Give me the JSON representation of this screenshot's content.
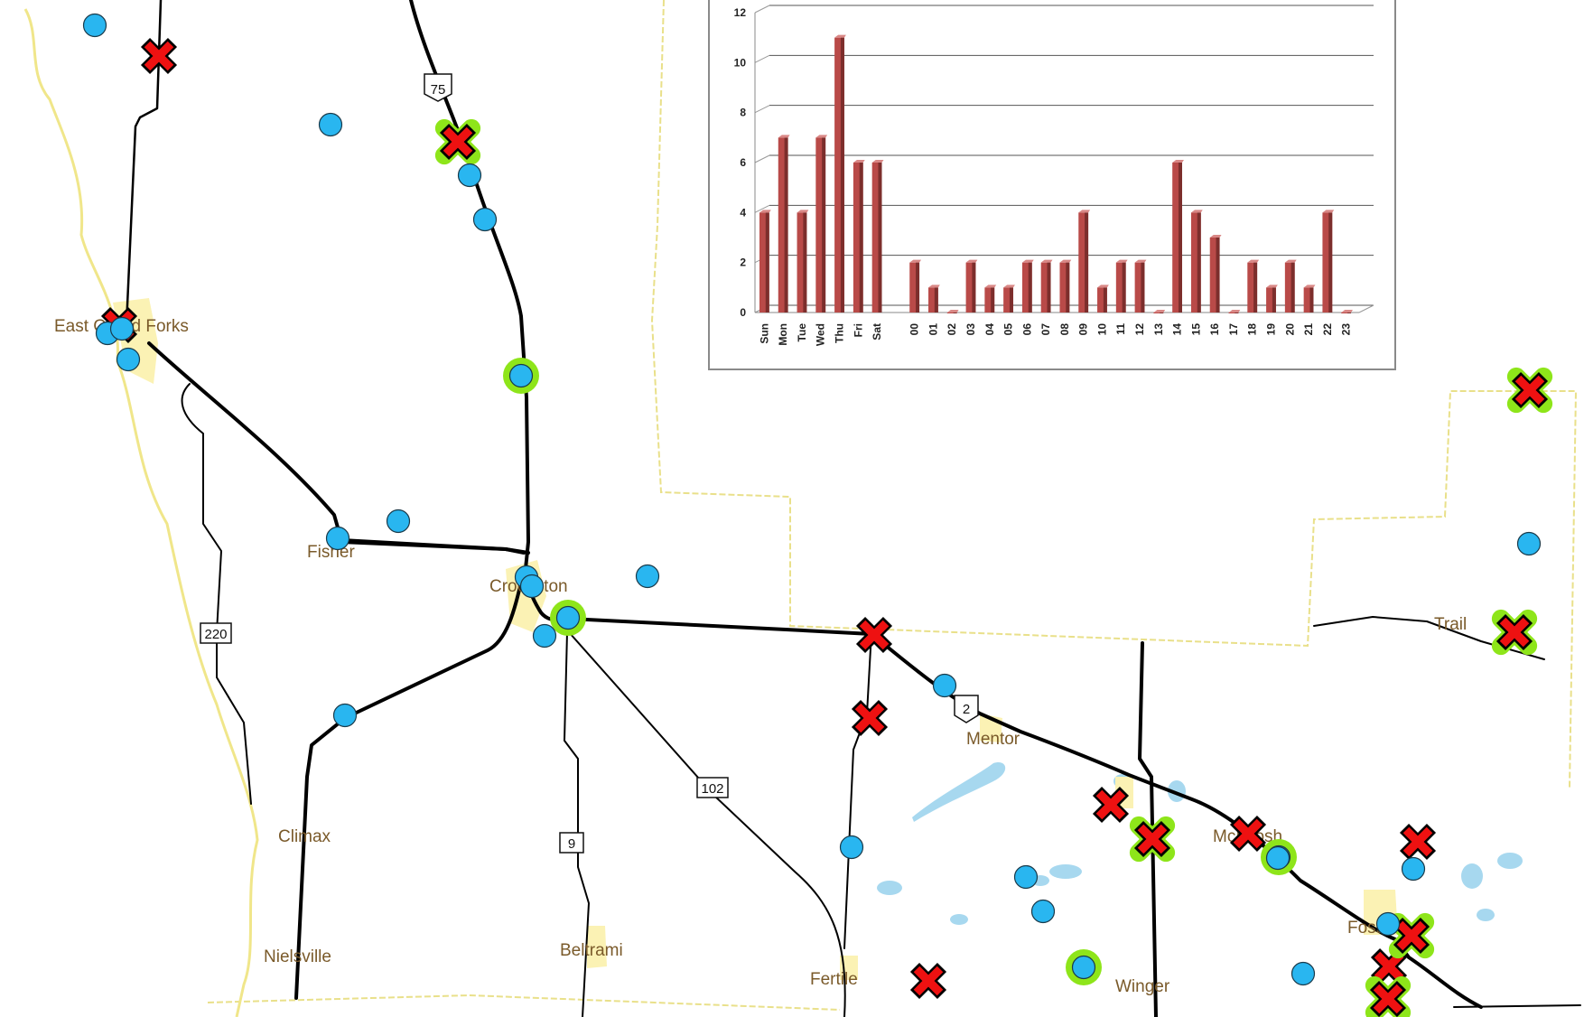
{
  "map": {
    "towns": [
      {
        "id": "east-grand-forks",
        "label": "East Grand Forks"
      },
      {
        "id": "fisher",
        "label": "Fisher"
      },
      {
        "id": "crookston",
        "label": "Crookston"
      },
      {
        "id": "climax",
        "label": "Climax"
      },
      {
        "id": "nielsville",
        "label": "Nielsville"
      },
      {
        "id": "beltrami",
        "label": "Beltrami"
      },
      {
        "id": "fertile",
        "label": "Fertile"
      },
      {
        "id": "mentor",
        "label": "Mentor"
      },
      {
        "id": "mcintosh",
        "label": "McIntosh"
      },
      {
        "id": "fosston",
        "label": "Fosston"
      },
      {
        "id": "winger",
        "label": "Winger"
      },
      {
        "id": "trail",
        "label": "Trail"
      }
    ],
    "route_shields": [
      {
        "id": "us-75",
        "label": "75",
        "type": "us"
      },
      {
        "id": "us-2",
        "label": "2",
        "type": "us"
      },
      {
        "id": "mn-220",
        "label": "220",
        "type": "state"
      },
      {
        "id": "mn-102",
        "label": "102",
        "type": "state"
      },
      {
        "id": "mn-9",
        "label": "9",
        "type": "state"
      }
    ],
    "colors": {
      "circle_marker": "#29b6f0",
      "x_marker": "#ee1111",
      "highlight_ring": "#8ee51a",
      "town_fill": "#fbf2b4",
      "water": "#a7d8ef",
      "county_line": "#e9e08a",
      "road": "#000000"
    }
  },
  "chart_data": {
    "type": "bar",
    "categories": [
      "Sun",
      "Mon",
      "Tue",
      "Wed",
      "Thu",
      "Fri",
      "Sat",
      "",
      "00",
      "01",
      "02",
      "03",
      "04",
      "05",
      "06",
      "07",
      "08",
      "09",
      "10",
      "11",
      "12",
      "13",
      "14",
      "15",
      "16",
      "17",
      "18",
      "19",
      "20",
      "21",
      "22",
      "23"
    ],
    "values": [
      4,
      7,
      4,
      7,
      11,
      6,
      6,
      null,
      2,
      1,
      0,
      2,
      1,
      1,
      2,
      2,
      2,
      4,
      1,
      2,
      2,
      0,
      6,
      4,
      3,
      0,
      2,
      1,
      2,
      1,
      4,
      0
    ],
    "yticks": [
      "0",
      "2",
      "4",
      "6",
      "8",
      "10",
      "12"
    ],
    "ylim": [
      0,
      12
    ],
    "title": "",
    "xlabel": "",
    "ylabel": "",
    "grid": true,
    "bar_color": "#b94a48"
  }
}
